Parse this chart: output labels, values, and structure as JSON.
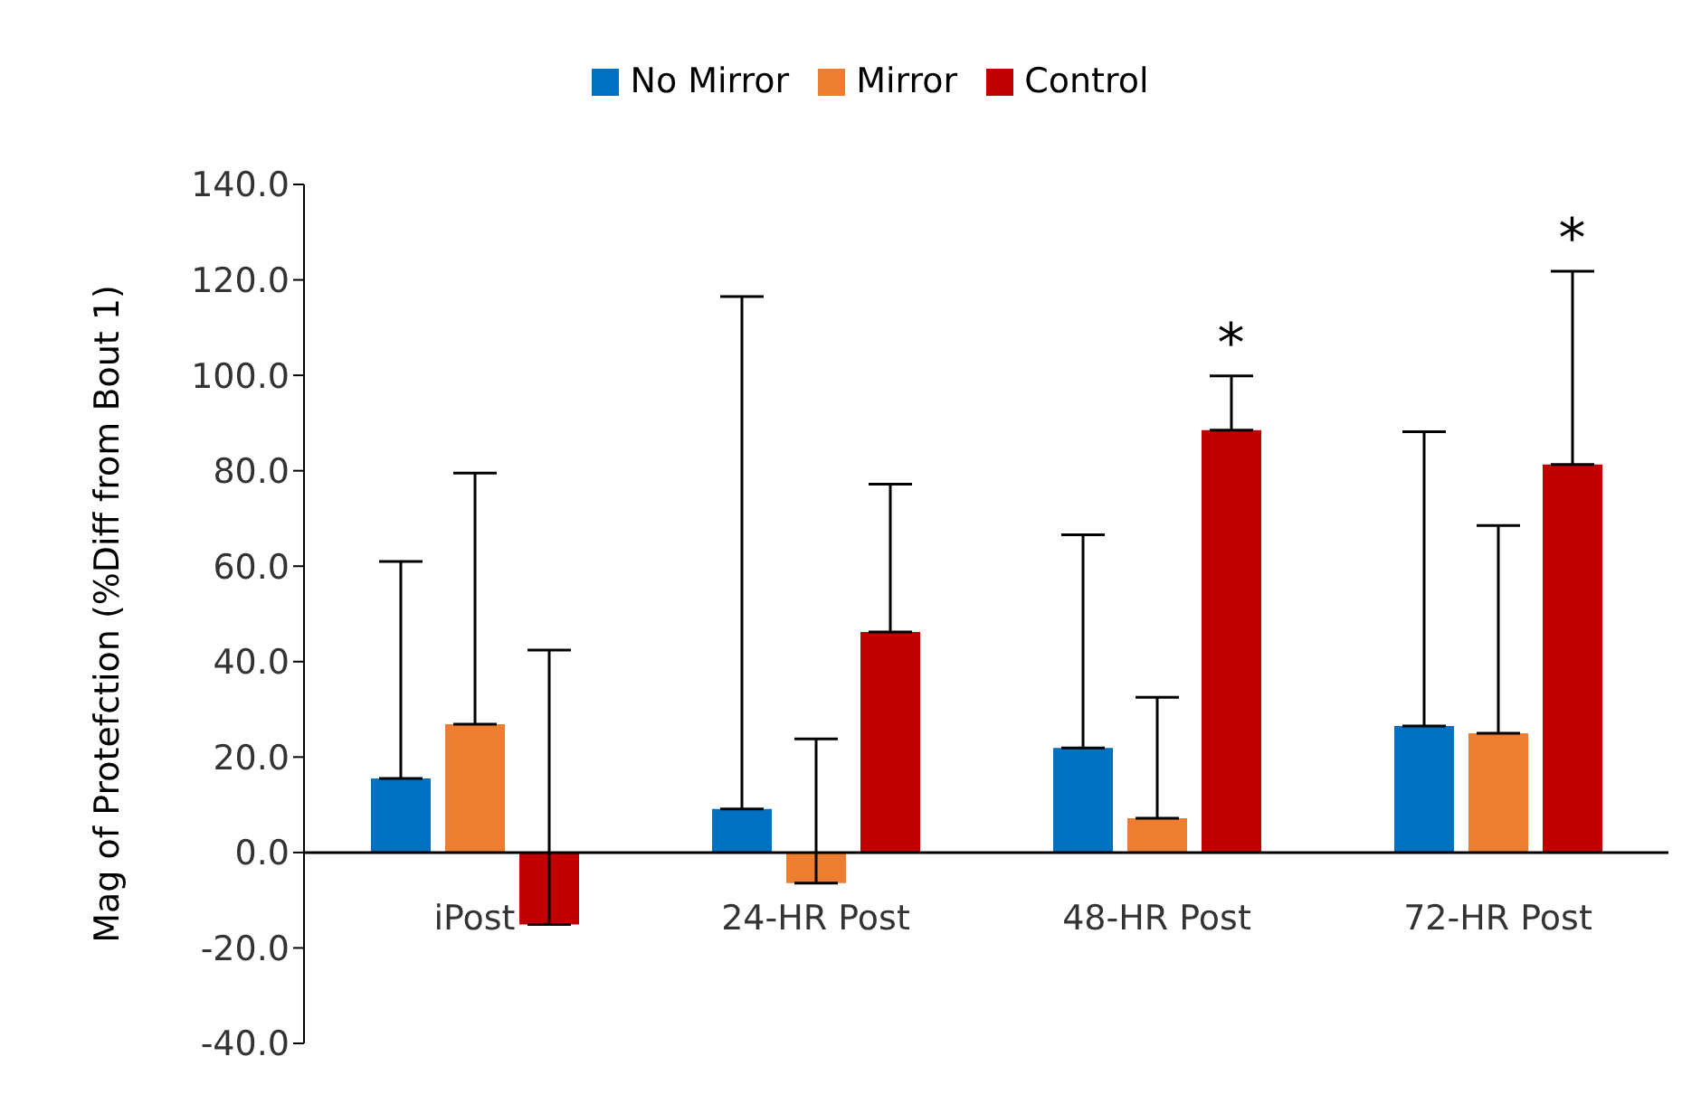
{
  "chart_data": {
    "type": "bar",
    "ylabel": "Mag of Protefction (%Diff from Bout 1)",
    "categories": [
      "iPost",
      "24-HR Post",
      "48-HR Post",
      "72-HR Post"
    ],
    "series": [
      {
        "name": "No Mirror",
        "color": "#0070c0",
        "values": [
          15.5,
          9.1,
          21.9,
          26.5
        ],
        "errors": [
          [
            15.5,
            61.0
          ],
          [
            9.1,
            116.5
          ],
          [
            21.9,
            66.6
          ],
          [
            26.5,
            88.2
          ]
        ]
      },
      {
        "name": "Mirror",
        "color": "#ed7d31",
        "values": [
          26.9,
          -6.4,
          7.2,
          25.0
        ],
        "errors": [
          [
            26.9,
            79.5
          ],
          [
            -6.4,
            23.8
          ],
          [
            7.2,
            32.5
          ],
          [
            25.0,
            68.5
          ]
        ]
      },
      {
        "name": "Control",
        "color": "#c00000",
        "values": [
          -15.1,
          46.2,
          88.5,
          81.3
        ],
        "errors": [
          [
            -15.1,
            42.4
          ],
          [
            46.2,
            77.2
          ],
          [
            88.5,
            99.9
          ],
          [
            81.3,
            121.8
          ]
        ]
      }
    ],
    "ylim": [
      -40,
      140
    ],
    "yticks": [
      {
        "value": -40,
        "label": "-40.0"
      },
      {
        "value": -20,
        "label": "-20.0"
      },
      {
        "value": 0,
        "label": "0.0"
      },
      {
        "value": 20,
        "label": "20.0"
      },
      {
        "value": 40,
        "label": "40.0"
      },
      {
        "value": 60,
        "label": "60.0"
      },
      {
        "value": 80,
        "label": "80.0"
      },
      {
        "value": 100,
        "label": "100.0"
      },
      {
        "value": 120,
        "label": "120.0"
      },
      {
        "value": 140,
        "label": "140.0"
      }
    ],
    "annotations": [
      "*",
      "*"
    ],
    "legend": "top",
    "grid": false
  }
}
